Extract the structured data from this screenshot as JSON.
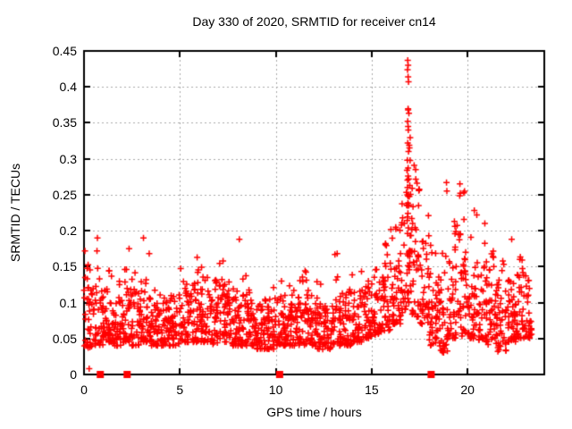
{
  "figure_title": "Day 330 of 2020, SRMTID for receiver cn14",
  "chart_data": {
    "type": "scatter",
    "title": "Day 330 of 2020, SRMTID for receiver cn14",
    "xlabel": "GPS time / hours",
    "ylabel": "SRMTID / TECUs",
    "xlim": [
      0,
      24
    ],
    "ylim": [
      0,
      0.45
    ],
    "xticks": [
      [
        0,
        "0"
      ],
      [
        5,
        "5"
      ],
      [
        10,
        "10"
      ],
      [
        15,
        "15"
      ],
      [
        20,
        "20"
      ]
    ],
    "yticks": [
      [
        0,
        "0"
      ],
      [
        0.05,
        "0.05"
      ],
      [
        0.1,
        "0.1"
      ],
      [
        0.15,
        "0.15"
      ],
      [
        0.2,
        "0.2"
      ],
      [
        0.25,
        "0.25"
      ],
      [
        0.3,
        "0.3"
      ],
      [
        0.35,
        "0.35"
      ],
      [
        0.4,
        "0.4"
      ],
      [
        0.45,
        "0.45"
      ]
    ],
    "grid": true,
    "grid_color": "#a8a8a8",
    "marker": "plus",
    "color": "#ff0000",
    "series_name": "SRMTID for receiver cn14",
    "x_data_range": [
      0,
      23.35
    ],
    "max_point": {
      "x": 16.9,
      "y": 0.437
    },
    "density_segments_format": [
      "x_start",
      "x_end",
      "n_points",
      "band_low",
      "band_high",
      "tail_max",
      "tail_fraction"
    ],
    "density_segments": [
      [
        0.0,
        0.5,
        40,
        0.035,
        0.125,
        0.175,
        0.12
      ],
      [
        0.5,
        1.0,
        40,
        0.04,
        0.12,
        0.19,
        0.1
      ],
      [
        1.0,
        1.5,
        40,
        0.045,
        0.12,
        0.16,
        0.12
      ],
      [
        1.5,
        2.0,
        40,
        0.04,
        0.11,
        0.145,
        0.08
      ],
      [
        2.0,
        2.5,
        40,
        0.045,
        0.12,
        0.175,
        0.1
      ],
      [
        2.5,
        3.0,
        40,
        0.04,
        0.115,
        0.15,
        0.08
      ],
      [
        3.0,
        3.5,
        40,
        0.045,
        0.12,
        0.19,
        0.1
      ],
      [
        3.5,
        4.0,
        40,
        0.04,
        0.105,
        0.13,
        0.06
      ],
      [
        4.0,
        4.5,
        40,
        0.04,
        0.1,
        0.125,
        0.06
      ],
      [
        4.5,
        5.0,
        40,
        0.04,
        0.11,
        0.14,
        0.06
      ],
      [
        5.0,
        5.5,
        40,
        0.045,
        0.115,
        0.15,
        0.08
      ],
      [
        5.5,
        6.0,
        40,
        0.045,
        0.12,
        0.165,
        0.1
      ],
      [
        6.0,
        6.5,
        40,
        0.045,
        0.12,
        0.155,
        0.12
      ],
      [
        6.5,
        7.0,
        40,
        0.04,
        0.115,
        0.15,
        0.08
      ],
      [
        7.0,
        7.5,
        40,
        0.045,
        0.12,
        0.16,
        0.1
      ],
      [
        7.5,
        8.0,
        40,
        0.04,
        0.11,
        0.14,
        0.06
      ],
      [
        8.0,
        8.5,
        40,
        0.04,
        0.11,
        0.155,
        0.06
      ],
      [
        8.5,
        9.0,
        40,
        0.04,
        0.105,
        0.13,
        0.06
      ],
      [
        9.0,
        9.5,
        40,
        0.035,
        0.1,
        0.13,
        0.06
      ],
      [
        9.5,
        10.0,
        40,
        0.035,
        0.105,
        0.14,
        0.06
      ],
      [
        10.0,
        10.5,
        40,
        0.04,
        0.11,
        0.135,
        0.06
      ],
      [
        10.5,
        11.0,
        40,
        0.04,
        0.105,
        0.13,
        0.06
      ],
      [
        11.0,
        11.5,
        40,
        0.04,
        0.11,
        0.14,
        0.08
      ],
      [
        11.5,
        12.0,
        40,
        0.04,
        0.115,
        0.145,
        0.08
      ],
      [
        12.0,
        12.5,
        40,
        0.035,
        0.1,
        0.13,
        0.06
      ],
      [
        12.5,
        13.0,
        40,
        0.035,
        0.105,
        0.135,
        0.06
      ],
      [
        13.0,
        13.5,
        40,
        0.04,
        0.115,
        0.17,
        0.1
      ],
      [
        13.5,
        14.0,
        40,
        0.04,
        0.115,
        0.155,
        0.08
      ],
      [
        14.0,
        14.5,
        40,
        0.045,
        0.115,
        0.145,
        0.08
      ],
      [
        14.5,
        15.0,
        40,
        0.05,
        0.12,
        0.14,
        0.08
      ],
      [
        15.0,
        15.5,
        40,
        0.055,
        0.125,
        0.155,
        0.1
      ],
      [
        15.5,
        16.0,
        40,
        0.06,
        0.135,
        0.185,
        0.12
      ],
      [
        16.0,
        16.5,
        40,
        0.07,
        0.15,
        0.21,
        0.14
      ],
      [
        16.5,
        16.8,
        24,
        0.08,
        0.17,
        0.25,
        0.18
      ],
      [
        16.8,
        17.05,
        42,
        0.1,
        0.28,
        0.37,
        0.3
      ],
      [
        17.05,
        17.5,
        40,
        0.08,
        0.2,
        0.3,
        0.22
      ],
      [
        17.5,
        18.0,
        40,
        0.07,
        0.19,
        0.3,
        0.2
      ],
      [
        18.0,
        18.5,
        40,
        0.04,
        0.13,
        0.18,
        0.1
      ],
      [
        18.5,
        19.0,
        40,
        0.03,
        0.12,
        0.23,
        0.12
      ],
      [
        19.0,
        19.5,
        40,
        0.05,
        0.15,
        0.22,
        0.14
      ],
      [
        19.5,
        20.0,
        40,
        0.05,
        0.16,
        0.26,
        0.15
      ],
      [
        20.0,
        20.5,
        40,
        0.05,
        0.15,
        0.23,
        0.12
      ],
      [
        20.5,
        21.0,
        40,
        0.045,
        0.14,
        0.19,
        0.1
      ],
      [
        21.0,
        21.5,
        40,
        0.04,
        0.13,
        0.175,
        0.1
      ],
      [
        21.5,
        22.0,
        40,
        0.03,
        0.125,
        0.165,
        0.08
      ],
      [
        22.0,
        22.5,
        40,
        0.045,
        0.135,
        0.19,
        0.1
      ],
      [
        22.5,
        23.0,
        40,
        0.05,
        0.14,
        0.18,
        0.1
      ],
      [
        23.0,
        23.35,
        30,
        0.05,
        0.125,
        0.155,
        0.08
      ]
    ],
    "spike_points": [
      [
        16.88,
        0.437
      ],
      [
        16.9,
        0.43
      ],
      [
        16.87,
        0.424
      ],
      [
        16.9,
        0.414
      ],
      [
        16.92,
        0.407
      ],
      [
        16.9,
        0.368
      ],
      [
        16.88,
        0.352
      ],
      [
        16.91,
        0.34
      ],
      [
        16.88,
        0.322
      ],
      [
        16.92,
        0.31
      ],
      [
        16.86,
        0.298
      ],
      [
        16.9,
        0.287
      ],
      [
        16.93,
        0.272
      ],
      [
        16.87,
        0.26
      ],
      [
        16.9,
        0.248
      ],
      [
        16.94,
        0.236
      ],
      [
        16.89,
        0.224
      ],
      [
        16.85,
        0.214
      ],
      [
        16.91,
        0.204
      ]
    ],
    "outlier_points": [
      [
        0.27,
        0.008
      ],
      [
        0.05,
        0.172
      ],
      [
        0.7,
        0.19
      ],
      [
        2.35,
        0.175
      ],
      [
        3.1,
        0.19
      ],
      [
        5.9,
        0.163
      ],
      [
        7.25,
        0.158
      ],
      [
        8.1,
        0.188
      ],
      [
        13.2,
        0.168
      ],
      [
        18.9,
        0.267
      ],
      [
        18.92,
        0.255
      ],
      [
        19.6,
        0.265
      ],
      [
        19.62,
        0.252
      ],
      [
        20.35,
        0.228
      ],
      [
        20.9,
        0.21
      ],
      [
        22.3,
        0.188
      ]
    ],
    "event_markers": {
      "marker": "filled-square",
      "y": 0,
      "x": [
        0.85,
        2.25,
        10.2,
        18.1
      ]
    }
  }
}
